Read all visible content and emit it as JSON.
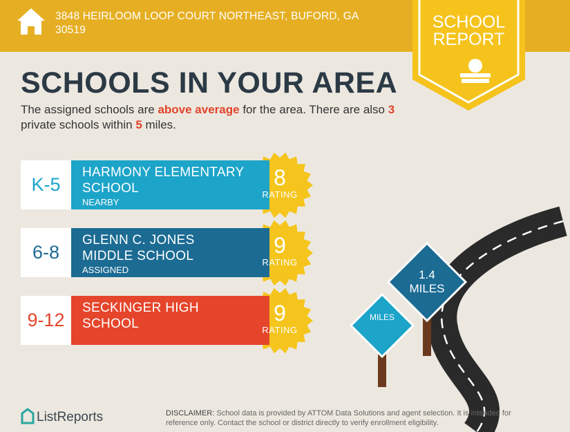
{
  "header": {
    "address_lines": [
      "3848 HEIRLOOM LOOP COURT NORTHEAST, BUFORD, GA",
      "30519"
    ],
    "badge_lines": [
      "SCHOOL",
      "REPORT"
    ]
  },
  "title": "SCHOOLS IN YOUR AREA",
  "intro": [
    {
      "text": "The assigned schools are ",
      "highlight": false
    },
    {
      "text": "above average",
      "highlight": true
    },
    {
      "text": " for the area. There are also ",
      "highlight": false
    },
    {
      "text": "3",
      "highlight": true
    },
    {
      "text": " private schools within ",
      "highlight": false
    },
    {
      "text": "5",
      "highlight": true
    },
    {
      "text": " miles.",
      "highlight": false
    }
  ],
  "schools": [
    {
      "grades": "K-5",
      "name_lines": [
        "HARMONY ELEMENTARY",
        "SCHOOL"
      ],
      "status": "NEARBY",
      "rating": 8,
      "rating_label": "RATING",
      "color": "#1ca4c9"
    },
    {
      "grades": "6-8",
      "name_lines": [
        "GLENN C. JONES",
        "MIDDLE SCHOOL"
      ],
      "status": "ASSIGNED",
      "rating": 9,
      "rating_label": "RATING",
      "color": "#1b6b93"
    },
    {
      "grades": "9-12",
      "name_lines": [
        "SECKINGER HIGH",
        "SCHOOL"
      ],
      "status": null,
      "rating": 9,
      "rating_label": "RATING",
      "color": "#e5452b"
    }
  ],
  "signs": [
    {
      "lines": [
        "1.4",
        "MILES"
      ]
    },
    {
      "lines": [
        "MILES"
      ]
    }
  ],
  "footer": {
    "brand": "ListReports",
    "disclaimer_lead": "DISCLAIMER:",
    "disclaimer": " School data is provided by ATTOM Data Solutions and agent selection. It is intended for reference only. Contact the school or district directly to verify enrollment eligibility."
  }
}
